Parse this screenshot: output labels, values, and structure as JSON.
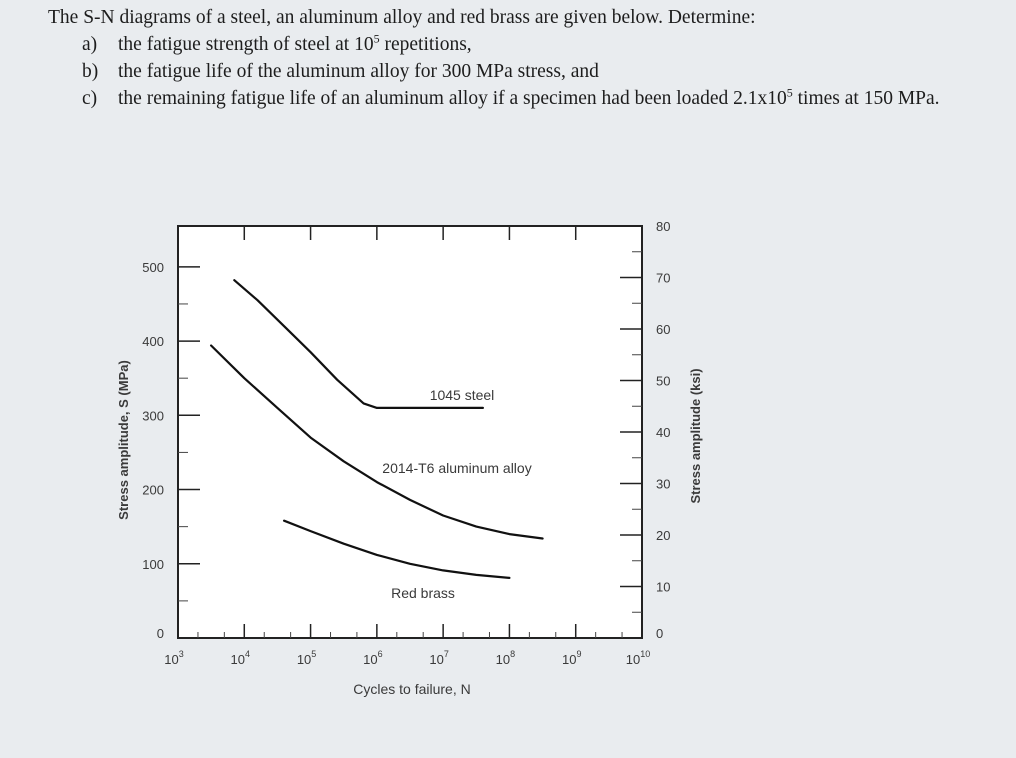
{
  "problem": {
    "intro": "The S-N diagrams of a steel, an aluminum alloy and red brass are given below. Determine:",
    "questions": [
      {
        "label": "a)",
        "text": "the fatigue strength of steel at 10",
        "sup": "5",
        "tail": " repetitions,"
      },
      {
        "label": "b)",
        "text": "the fatigue life of the aluminum alloy for 300 MPa stress, and",
        "sup": "",
        "tail": ""
      },
      {
        "label": "c)",
        "text": "the remaining fatigue life of an aluminum alloy if a specimen had been loaded 2.1x10",
        "sup": "5",
        "tail": " times at 150 MPa."
      }
    ]
  },
  "chart_data": {
    "type": "line",
    "xlabel": "Cycles to failure, N",
    "ylabel_left": "Stress amplitude, S (MPa)",
    "ylabel_right": "Stress amplitude (ksi)",
    "x_scale": "log",
    "xlim": [
      1000,
      10000000000
    ],
    "x_ticks": [
      {
        "exp": 3,
        "label": "10",
        "sup": "3"
      },
      {
        "exp": 4,
        "label": "10",
        "sup": "4"
      },
      {
        "exp": 5,
        "label": "10",
        "sup": "5"
      },
      {
        "exp": 6,
        "label": "10",
        "sup": "6"
      },
      {
        "exp": 7,
        "label": "10",
        "sup": "7"
      },
      {
        "exp": 8,
        "label": "10",
        "sup": "8"
      },
      {
        "exp": 9,
        "label": "10",
        "sup": "9"
      },
      {
        "exp": 10,
        "label": "10",
        "sup": "10"
      }
    ],
    "ylim_mpa": [
      0,
      555
    ],
    "y_ticks_mpa": [
      "0",
      "100",
      "200",
      "300",
      "400",
      "500"
    ],
    "ylim_ksi": [
      0,
      80
    ],
    "y_ticks_ksi": [
      "0",
      "10",
      "20",
      "30",
      "40",
      "50",
      "60",
      "70",
      "80"
    ],
    "series": [
      {
        "name": "1045 steel",
        "log_n": [
          3.85,
          4.2,
          4.6,
          5.0,
          5.4,
          5.8,
          6.0,
          6.3,
          6.7,
          7.0,
          7.3,
          7.6
        ],
        "stress_mpa": [
          482,
          455,
          420,
          385,
          348,
          316,
          310,
          310,
          310,
          310,
          310,
          310
        ]
      },
      {
        "name": "2014-T6 aluminum alloy",
        "log_n": [
          3.5,
          4.0,
          4.5,
          5.0,
          5.5,
          6.0,
          6.5,
          7.0,
          7.5,
          8.0,
          8.5
        ],
        "stress_mpa": [
          394,
          350,
          310,
          270,
          238,
          210,
          186,
          165,
          150,
          140,
          134
        ]
      },
      {
        "name": "Red brass",
        "log_n": [
          4.6,
          5.0,
          5.5,
          6.0,
          6.5,
          7.0,
          7.5,
          8.0
        ],
        "stress_mpa": [
          158,
          144,
          127,
          112,
          100,
          91,
          85,
          81
        ]
      }
    ]
  }
}
